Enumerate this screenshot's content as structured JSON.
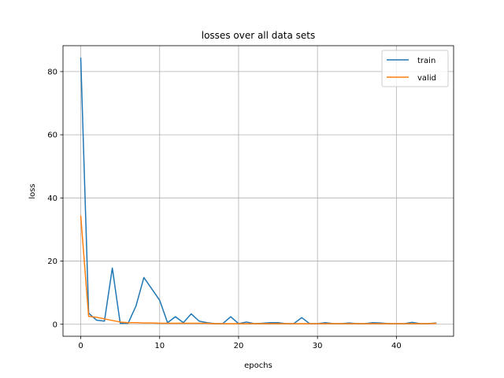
{
  "chart_data": {
    "type": "line",
    "title": "losses over all data sets",
    "xlabel": "epochs",
    "ylabel": "loss",
    "xlim": [
      -2.25,
      47.25
    ],
    "ylim": [
      -3.8,
      88.2
    ],
    "xticks": [
      0,
      10,
      20,
      30,
      40
    ],
    "yticks": [
      0,
      20,
      40,
      60,
      80
    ],
    "grid": true,
    "legend_position": "top-right",
    "series": [
      {
        "name": "train",
        "color": "#1f77b4",
        "x": [
          0,
          1,
          2,
          3,
          4,
          5,
          6,
          7,
          8,
          9,
          10,
          11,
          12,
          13,
          14,
          15,
          16,
          17,
          18,
          19,
          20,
          21,
          22,
          23,
          24,
          25,
          26,
          27,
          28,
          29,
          30,
          31,
          32,
          33,
          34,
          35,
          36,
          37,
          38,
          39,
          40,
          41,
          42,
          43,
          44,
          45
        ],
        "y": [
          84.2,
          3.5,
          1.3,
          1.0,
          17.8,
          0.3,
          0.3,
          5.8,
          14.8,
          11.2,
          7.6,
          0.5,
          2.4,
          0.5,
          3.3,
          1.0,
          0.5,
          0.2,
          0.2,
          2.4,
          0.2,
          0.7,
          0.2,
          0.3,
          0.5,
          0.5,
          0.2,
          0.2,
          2.1,
          0.2,
          0.2,
          0.5,
          0.2,
          0.2,
          0.4,
          0.2,
          0.2,
          0.5,
          0.4,
          0.2,
          0.2,
          0.2,
          0.6,
          0.2,
          0.2,
          0.4
        ]
      },
      {
        "name": "valid",
        "color": "#ff7f0e",
        "x": [
          0,
          1,
          2,
          3,
          4,
          5,
          6,
          7,
          8,
          9,
          10,
          11,
          12,
          13,
          14,
          15,
          16,
          17,
          18,
          19,
          20,
          21,
          22,
          23,
          24,
          25,
          26,
          27,
          28,
          29,
          30,
          31,
          32,
          33,
          34,
          35,
          36,
          37,
          38,
          39,
          40,
          41,
          42,
          43,
          44,
          45
        ],
        "y": [
          34.2,
          2.5,
          2.2,
          1.7,
          1.2,
          0.7,
          0.5,
          0.5,
          0.4,
          0.4,
          0.3,
          0.3,
          0.3,
          0.3,
          0.3,
          0.3,
          0.3,
          0.2,
          0.2,
          0.2,
          0.2,
          0.2,
          0.2,
          0.2,
          0.2,
          0.2,
          0.2,
          0.2,
          0.2,
          0.2,
          0.2,
          0.2,
          0.2,
          0.2,
          0.2,
          0.2,
          0.2,
          0.2,
          0.2,
          0.2,
          0.2,
          0.2,
          0.2,
          0.2,
          0.2,
          0.3
        ]
      }
    ]
  }
}
